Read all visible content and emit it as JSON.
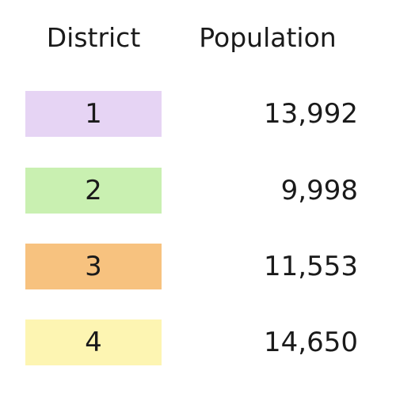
{
  "table": {
    "header": [
      "District",
      "Population"
    ],
    "rows": [
      [
        "1",
        "13,992"
      ],
      [
        "2",
        "9,998"
      ],
      [
        "3",
        "11,553"
      ],
      [
        "4",
        "14,650"
      ]
    ]
  }
}
